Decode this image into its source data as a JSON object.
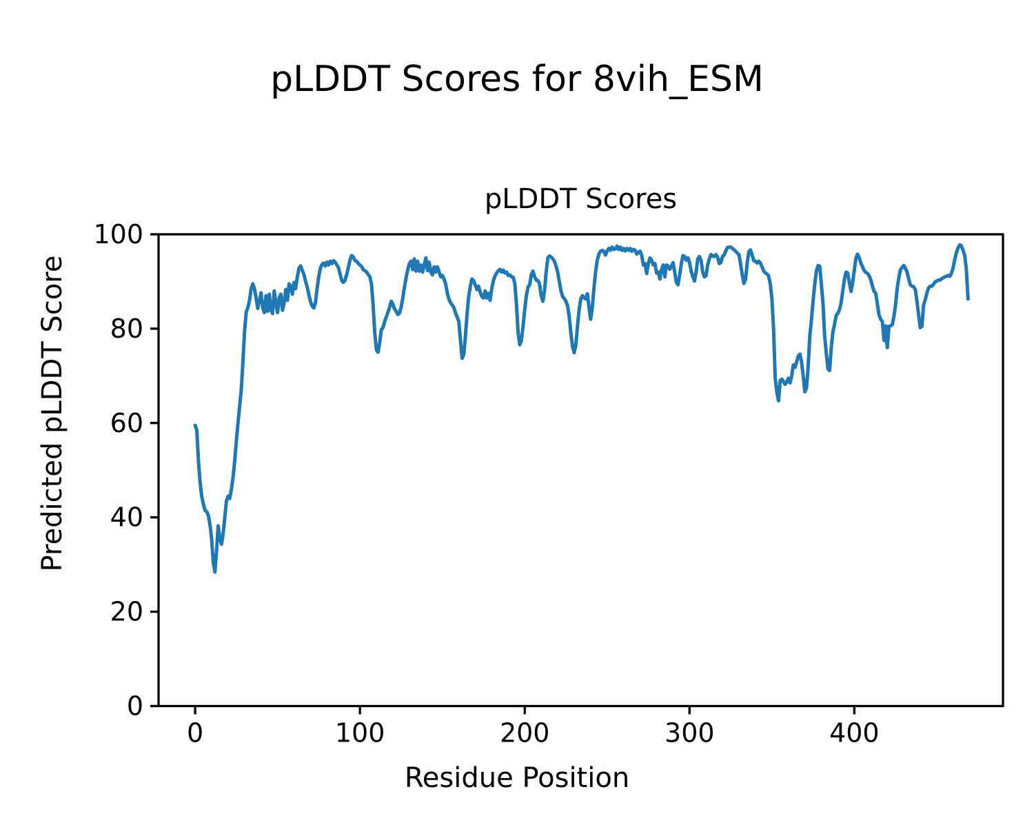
{
  "figure": {
    "suptitle": "pLDDT Scores for 8vih_ESM",
    "background": "#ffffff"
  },
  "chart_data": {
    "type": "line",
    "title": "pLDDT Scores",
    "xlabel": "Residue Position",
    "ylabel": "Predicted pLDDT Score",
    "x_ticks": [
      0,
      100,
      200,
      300,
      400
    ],
    "y_ticks": [
      0,
      20,
      40,
      60,
      80,
      100
    ],
    "xlim": [
      -22.2,
      490.2
    ],
    "ylim": [
      0,
      100
    ],
    "grid": false,
    "legend_position": "none",
    "line_color": "#1f77b4",
    "axis_color": "#000000",
    "line_width": 5,
    "series_name": "pLDDT",
    "x_start": 0,
    "x_step": 1,
    "values": [
      59.5,
      58.5,
      52,
      47.5,
      44.5,
      42.8,
      41.5,
      41.2,
      40.5,
      38.5,
      35.5,
      30.5,
      28.4,
      33,
      38.2,
      35.5,
      34.3,
      36.5,
      40,
      43.5,
      44.5,
      44,
      46,
      48.5,
      52,
      56,
      60,
      63.5,
      67,
      73,
      79.5,
      83.5,
      84.5,
      86,
      88.5,
      89.5,
      88.5,
      86.5,
      84.3,
      86,
      87.6,
      84.5,
      83.4,
      87,
      83.7,
      87.3,
      84,
      83.2,
      88,
      85.5,
      83.4,
      86.5,
      87.3,
      83.9,
      85.5,
      88.3,
      86,
      89.5,
      89,
      87.3,
      89.8,
      88.5,
      91,
      92.8,
      93.3,
      92.4,
      91.5,
      90,
      88.9,
      87.2,
      85.8,
      84.8,
      84.4,
      85.5,
      88.5,
      91,
      92.9,
      93.6,
      93.9,
      93.3,
      94.1,
      93.5,
      94.3,
      93.8,
      94.4,
      94.1,
      93.5,
      92.9,
      91.5,
      90.2,
      89.8,
      90.3,
      91.5,
      93,
      94.6,
      95.5,
      95.2,
      94.4,
      94.3,
      93.8,
      93.5,
      93.2,
      92.5,
      92.3,
      92,
      91.5,
      91,
      89.5,
      85,
      79,
      75.5,
      75,
      77,
      79.8,
      80.2,
      81.5,
      82.5,
      83.5,
      84.5,
      85.8,
      85.2,
      84.2,
      83.7,
      83,
      83.3,
      84.5,
      86.5,
      88.8,
      90.8,
      92.5,
      93.8,
      94.3,
      92.5,
      94.8,
      92.2,
      94.3,
      92.2,
      93.5,
      92,
      93.5,
      95,
      92.3,
      94.1,
      92,
      91.4,
      93.1,
      92,
      93.1,
      92.1,
      91,
      91.3,
      90.5,
      89.5,
      87.5,
      86.3,
      85.5,
      85,
      84.5,
      83.3,
      82.5,
      81.5,
      77.5,
      73.7,
      74.5,
      78.5,
      83,
      86.8,
      89,
      90.5,
      90.2,
      89.2,
      88.3,
      89,
      87.7,
      86.8,
      86.5,
      88,
      86.5,
      87.5,
      86,
      88.5,
      90.2,
      91.2,
      91.8,
      92.3,
      92.6,
      92,
      92.4,
      91.8,
      92,
      91.3,
      91.4,
      91,
      90.9,
      89.5,
      85,
      79,
      76.6,
      77.5,
      80.5,
      84,
      87,
      88.8,
      89.3,
      91.5,
      92.2,
      91,
      90.3,
      90.2,
      89.5,
      87,
      85.8,
      88,
      92,
      95,
      95.4,
      95.2,
      94.8,
      94.3,
      93.3,
      92,
      90,
      88,
      86.8,
      86.4,
      85.8,
      84.8,
      82.5,
      79,
      76.3,
      74.9,
      76.5,
      80.5,
      84,
      86.3,
      87,
      86.5,
      86.3,
      87.4,
      84.5,
      82,
      84.5,
      88.5,
      92,
      94.5,
      95.8,
      96.4,
      96.6,
      96.4,
      95.6,
      96.5,
      97,
      96.6,
      97.3,
      96.8,
      96.9,
      97.5,
      96.8,
      97.3,
      96.6,
      97,
      96.5,
      97,
      96.6,
      97,
      96.4,
      96.8,
      96.6,
      95.8,
      96.2,
      96.4,
      95.5,
      93.5,
      93.8,
      91.7,
      93.8,
      95,
      94.5,
      93.5,
      93.8,
      91.8,
      92,
      90.5,
      92.5,
      93.5,
      91,
      93.5,
      93.3,
      92.6,
      93.2,
      94,
      92,
      89.8,
      89.3,
      91.3,
      93.7,
      95.5,
      95.3,
      94.5,
      95,
      94,
      92.2,
      91,
      90.1,
      92,
      94.8,
      95.3,
      94.5,
      92,
      91,
      91.2,
      93.5,
      94.8,
      95.7,
      95.4,
      95.3,
      95.7,
      95.2,
      93.8,
      94,
      95.3,
      95.6,
      96.5,
      97.2,
      97.3,
      97.3,
      97,
      96.7,
      96.4,
      96,
      95.7,
      93.6,
      91.4,
      89.6,
      90.5,
      94,
      96.3,
      96.7,
      95.6,
      94.4,
      94.3,
      93.9,
      94.3,
      93.9,
      93.1,
      92.2,
      91.8,
      91.6,
      91.2,
      89.5,
      86.4,
      80,
      69.5,
      66.5,
      64.7,
      69,
      69.3,
      68.8,
      68.2,
      68.7,
      69.5,
      68.5,
      70,
      72.3,
      71.8,
      73,
      74.2,
      74.6,
      72.8,
      70,
      66.6,
      67.5,
      72,
      78.5,
      82,
      86,
      89.5,
      92.3,
      93.4,
      93.2,
      89.5,
      85.3,
      78.5,
      74.8,
      71.5,
      71.1,
      76,
      79.3,
      81,
      82.8,
      83.3,
      84,
      85.5,
      88,
      90.5,
      92,
      91.8,
      89.7,
      87.9,
      89.8,
      92.5,
      95,
      95.8,
      95,
      93.9,
      93.1,
      92.3,
      91.9,
      91.7,
      91.2,
      90.3,
      89,
      87.9,
      87.5,
      85.2,
      82.9,
      82,
      81.5,
      77.5,
      80.6,
      76,
      80.5,
      80.6,
      80.8,
      82.5,
      85,
      88.5,
      90.8,
      92.5,
      93,
      93.4,
      92.8,
      92,
      90.5,
      89.3,
      89,
      88.9,
      88.3,
      85.8,
      82.9,
      80.2,
      80.5,
      85,
      86.1,
      87.5,
      88.6,
      89,
      89,
      89.4,
      89.9,
      90.1,
      90.3,
      90.3,
      90.6,
      90.8,
      91,
      91.1,
      91.3,
      91.1,
      91.8,
      93,
      94.8,
      96.2,
      97.2,
      97.8,
      97.5,
      96.6,
      95.5,
      92.5,
      86.3
    ]
  }
}
